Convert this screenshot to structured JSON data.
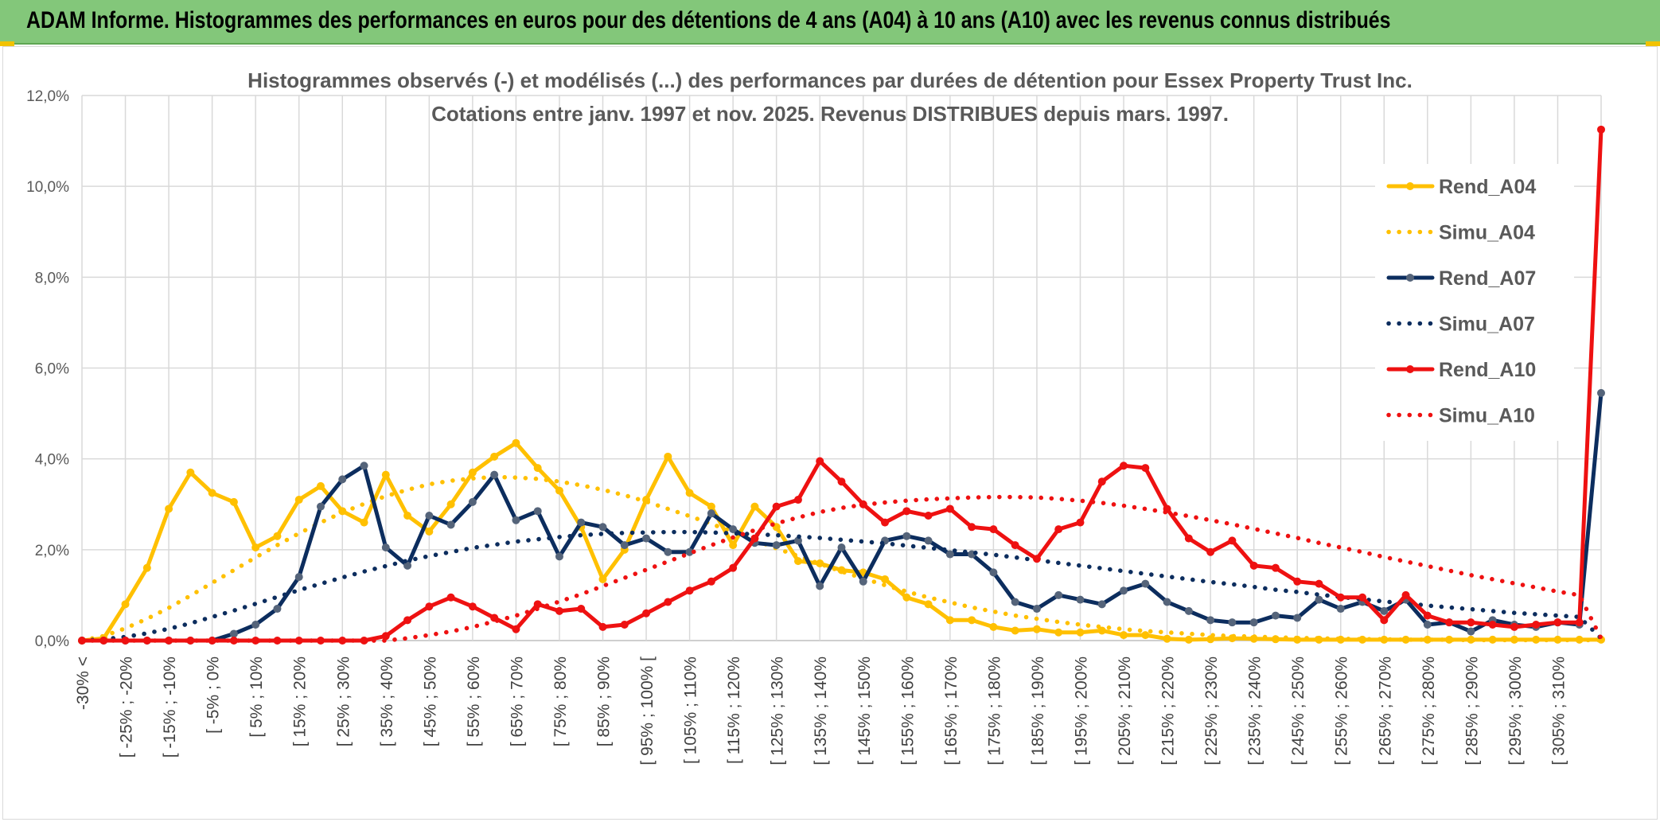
{
  "page_title": "ADAM Informe. Histogrammes des performances en euros pour des détentions de 4 ans (A04) à 10 ans (A10) avec les revenus connus distribués",
  "chart_data": {
    "type": "line",
    "title": "Histogrammes observés (-) et modélisés (...) des performances par durées de détention pour Essex Property Trust Inc.",
    "subtitle": "Cotations entre janv. 1997 et nov. 2025. Revenus DISTRIBUES depuis mars. 1997.",
    "xlabel": "",
    "ylabel": "",
    "ylim": [
      0,
      12
    ],
    "y_ticks": [
      "0,0%",
      "2,0%",
      "4,0%",
      "6,0%",
      "8,0%",
      "10,0%",
      "12,0%"
    ],
    "x_tick_labels": [
      "-30% <",
      "[ -25% ; -20%",
      "[ -15% ; -10%",
      "[ -5% ; 0%",
      "[ 5% ; 10%",
      "[ 15% ; 20%",
      "[ 25% ; 30%",
      "[ 35% ; 40%",
      "[ 45% ; 50%",
      "[ 55% ; 60%",
      "[ 65% ; 70%",
      "[ 75% ; 80%",
      "[ 85% ; 90%",
      "[ 95% ; 100% [",
      "[ 105% ; 110%",
      "[ 115% ; 120%",
      "[ 125% ; 130%",
      "[ 135% ; 140%",
      "[ 145% ; 150%",
      "[ 155% ; 160%",
      "[ 165% ; 170%",
      "[ 175% ; 180%",
      "[ 185% ; 190%",
      "[ 195% ; 200%",
      "[ 205% ; 210%",
      "[ 215% ; 220%",
      "[ 225% ; 230%",
      "[ 235% ; 240%",
      "[ 245% ; 250%",
      "[ 255% ; 260%",
      "[ 265% ; 270%",
      "[ 275% ; 280%",
      "[ 285% ; 290%",
      "[ 295% ; 300%",
      "[ 305% ; 310%"
    ],
    "grid": true,
    "legend_position": "right",
    "series": [
      {
        "name": "Rend_A04",
        "style": "solid-markers",
        "color": "#ffc000",
        "values": [
          0.0,
          0.05,
          0.8,
          1.6,
          2.9,
          3.7,
          3.25,
          3.05,
          2.05,
          2.3,
          3.1,
          3.4,
          2.85,
          2.6,
          3.65,
          2.75,
          2.4,
          3.0,
          3.7,
          4.05,
          4.35,
          3.8,
          3.3,
          2.5,
          1.35,
          2.0,
          3.1,
          4.05,
          3.25,
          2.95,
          2.1,
          2.95,
          2.5,
          1.75,
          1.7,
          1.55,
          1.5,
          1.35,
          0.95,
          0.8,
          0.45,
          0.45,
          0.3,
          0.22,
          0.25,
          0.18,
          0.18,
          0.22,
          0.12,
          0.12,
          0.04,
          0.02,
          0.03,
          0.05,
          0.04,
          0.03,
          0.02,
          0.02,
          0.02,
          0.02,
          0.02,
          0.02,
          0.02,
          0.02,
          0.02,
          0.02,
          0.02,
          0.02,
          0.02,
          0.02,
          0.02
        ]
      },
      {
        "name": "Simu_A04",
        "style": "dotted",
        "color": "#ffc000",
        "values": [
          0.0,
          0.1,
          0.27,
          0.48,
          0.72,
          0.99,
          1.27,
          1.55,
          1.83,
          2.1,
          2.36,
          2.6,
          2.82,
          3.01,
          3.18,
          3.32,
          3.44,
          3.52,
          3.57,
          3.6,
          3.59,
          3.56,
          3.5,
          3.42,
          3.32,
          3.2,
          3.06,
          2.9,
          2.74,
          2.57,
          2.39,
          2.21,
          2.03,
          1.86,
          1.69,
          1.52,
          1.37,
          1.22,
          1.08,
          0.95,
          0.84,
          0.73,
          0.64,
          0.55,
          0.48,
          0.41,
          0.35,
          0.3,
          0.25,
          0.21,
          0.18,
          0.15,
          0.12,
          0.1,
          0.09,
          0.07,
          0.06,
          0.05,
          0.04,
          0.03,
          0.03,
          0.02,
          0.02,
          0.02,
          0.01,
          0.01,
          0.01,
          0.01,
          0.01,
          0.01,
          0.01
        ]
      },
      {
        "name": "Rend_A07",
        "style": "solid-markers",
        "color": "#0c2d5e",
        "values": [
          0.0,
          0.0,
          0.0,
          0.0,
          0.0,
          0.0,
          0.0,
          0.15,
          0.35,
          0.7,
          1.4,
          2.95,
          3.55,
          3.85,
          2.05,
          1.65,
          2.75,
          2.55,
          3.05,
          3.65,
          2.65,
          2.85,
          1.85,
          2.6,
          2.5,
          2.1,
          2.25,
          1.95,
          1.95,
          2.8,
          2.45,
          2.15,
          2.1,
          2.2,
          1.2,
          2.05,
          1.3,
          2.2,
          2.3,
          2.2,
          1.9,
          1.9,
          1.5,
          0.85,
          0.7,
          1.0,
          0.9,
          0.8,
          1.1,
          1.25,
          0.85,
          0.65,
          0.45,
          0.4,
          0.4,
          0.55,
          0.5,
          0.9,
          0.7,
          0.85,
          0.65,
          0.9,
          0.35,
          0.4,
          0.2,
          0.45,
          0.35,
          0.3,
          0.4,
          0.35,
          5.45
        ]
      },
      {
        "name": "Simu_A07",
        "style": "dotted",
        "color": "#0c2d5e",
        "values": [
          0.0,
          0.03,
          0.08,
          0.16,
          0.26,
          0.38,
          0.52,
          0.66,
          0.81,
          0.96,
          1.11,
          1.25,
          1.39,
          1.52,
          1.64,
          1.76,
          1.86,
          1.95,
          2.04,
          2.11,
          2.18,
          2.23,
          2.28,
          2.32,
          2.35,
          2.37,
          2.38,
          2.39,
          2.39,
          2.38,
          2.36,
          2.34,
          2.32,
          2.29,
          2.26,
          2.22,
          2.18,
          2.14,
          2.09,
          2.04,
          1.99,
          1.94,
          1.89,
          1.83,
          1.77,
          1.71,
          1.65,
          1.59,
          1.53,
          1.47,
          1.41,
          1.35,
          1.29,
          1.24,
          1.18,
          1.12,
          1.07,
          1.01,
          0.96,
          0.91,
          0.86,
          0.82,
          0.77,
          0.73,
          0.69,
          0.65,
          0.61,
          0.58,
          0.55,
          0.52,
          0.05
        ]
      },
      {
        "name": "Rend_A10",
        "style": "solid-markers",
        "color": "#ee1111",
        "values": [
          0.0,
          0.0,
          0.0,
          0.0,
          0.0,
          0.0,
          0.0,
          0.0,
          0.0,
          0.0,
          0.0,
          0.0,
          0.0,
          0.0,
          0.1,
          0.45,
          0.75,
          0.95,
          0.75,
          0.5,
          0.25,
          0.8,
          0.65,
          0.7,
          0.3,
          0.35,
          0.6,
          0.85,
          1.1,
          1.3,
          1.6,
          2.25,
          2.95,
          3.1,
          3.95,
          3.5,
          3.0,
          2.6,
          2.85,
          2.75,
          2.9,
          2.5,
          2.45,
          2.1,
          1.8,
          2.45,
          2.6,
          3.5,
          3.85,
          3.8,
          2.9,
          2.25,
          1.95,
          2.2,
          1.65,
          1.6,
          1.3,
          1.25,
          0.95,
          0.95,
          0.45,
          1.0,
          0.55,
          0.4,
          0.4,
          0.35,
          0.3,
          0.35,
          0.4,
          0.4,
          11.25
        ]
      },
      {
        "name": "Simu_A10",
        "style": "dotted",
        "color": "#ee1111",
        "values": [
          0.0,
          0.0,
          0.0,
          0.0,
          0.0,
          0.0,
          0.0,
          0.0,
          0.0,
          0.0,
          0.0,
          0.0,
          0.0,
          0.0,
          0.0,
          0.05,
          0.12,
          0.2,
          0.3,
          0.42,
          0.55,
          0.7,
          0.86,
          1.02,
          1.2,
          1.38,
          1.56,
          1.74,
          1.92,
          2.1,
          2.27,
          2.43,
          2.58,
          2.71,
          2.83,
          2.92,
          2.99,
          3.04,
          3.08,
          3.11,
          3.13,
          3.15,
          3.16,
          3.16,
          3.15,
          3.12,
          3.08,
          3.03,
          2.97,
          2.9,
          2.82,
          2.74,
          2.65,
          2.56,
          2.46,
          2.36,
          2.26,
          2.15,
          2.05,
          1.95,
          1.84,
          1.74,
          1.64,
          1.54,
          1.44,
          1.35,
          1.26,
          1.17,
          1.08,
          1.0,
          0.05
        ]
      }
    ]
  }
}
